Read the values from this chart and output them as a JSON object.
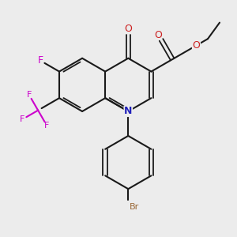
{
  "bg_color": "#ececec",
  "bond_color": "#1a1a1a",
  "N_color": "#2222bb",
  "O_color": "#cc2222",
  "F_color": "#cc00cc",
  "Br_color": "#996633",
  "lw": 1.5,
  "lw_dbl": 1.3,
  "xlim": [
    -2.5,
    9.0
  ],
  "ylim": [
    -3.5,
    8.0
  ]
}
